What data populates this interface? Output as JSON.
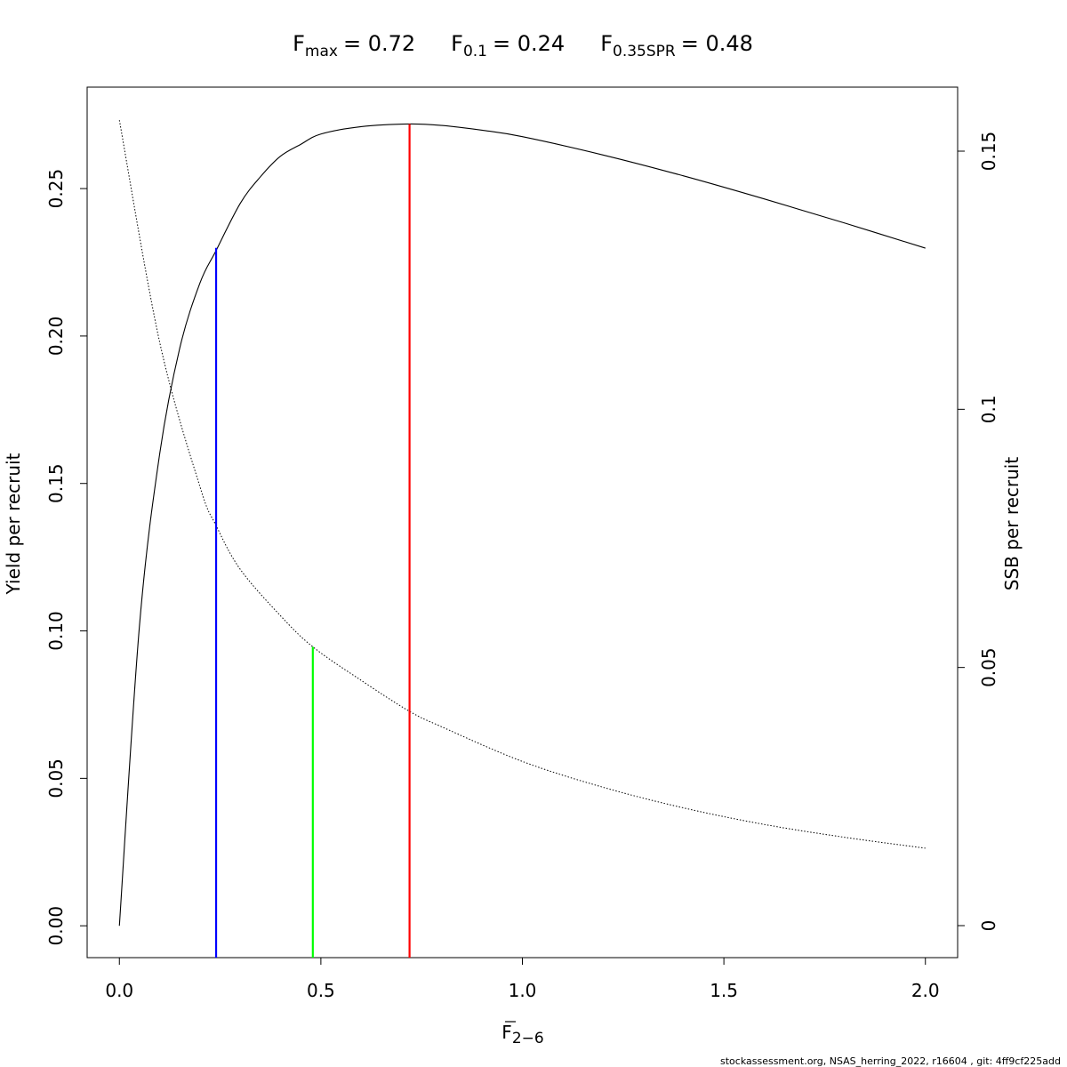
{
  "chart_data": {
    "type": "line",
    "title_parts": [
      {
        "symbol": "F",
        "subscript": "max",
        "equals": "= 0.72"
      },
      {
        "symbol": "F",
        "subscript": "0.1",
        "equals": "= 0.24"
      },
      {
        "symbol": "F",
        "subscript": "0.35SPR",
        "equals": "= 0.48"
      }
    ],
    "xlabel": {
      "symbol": "F",
      "subscript": "2−6"
    },
    "ylabel": "Yield per recruit",
    "ylabel_right": "SSB per recruit",
    "xlim": [
      -0.08,
      2.08
    ],
    "ylim": [
      -0.0108,
      0.2844
    ],
    "ylim_right": [
      -0.0062,
      0.1624
    ],
    "x_ticks": [
      {
        "value": 0.0,
        "label": "0.0"
      },
      {
        "value": 0.5,
        "label": "0.5"
      },
      {
        "value": 1.0,
        "label": "1.0"
      },
      {
        "value": 1.5,
        "label": "1.5"
      },
      {
        "value": 2.0,
        "label": "2.0"
      }
    ],
    "y_ticks": [
      {
        "value": 0.0,
        "label": "0.00"
      },
      {
        "value": 0.05,
        "label": "0.05"
      },
      {
        "value": 0.1,
        "label": "0.10"
      },
      {
        "value": 0.15,
        "label": "0.15"
      },
      {
        "value": 0.2,
        "label": "0.20"
      },
      {
        "value": 0.25,
        "label": "0.25"
      }
    ],
    "y_ticks_right": [
      {
        "value": 0.0,
        "label": "0"
      },
      {
        "value": 0.05,
        "label": "0.05"
      },
      {
        "value": 0.1,
        "label": "0.1"
      },
      {
        "value": 0.15,
        "label": "0.15"
      }
    ],
    "grid": false,
    "series": [
      {
        "style": "solid",
        "axis": "left",
        "color": "#000000",
        "x": [
          0.0,
          0.05,
          0.1,
          0.15,
          0.2,
          0.24,
          0.3,
          0.35,
          0.4,
          0.45,
          0.5,
          0.6,
          0.72,
          0.8,
          0.9,
          1.0,
          1.2,
          1.4,
          1.6,
          1.8,
          2.0
        ],
        "y": [
          0.0,
          0.102,
          0.16,
          0.196,
          0.218,
          0.229,
          0.245,
          0.254,
          0.261,
          0.265,
          0.2685,
          0.271,
          0.2719,
          0.2714,
          0.2698,
          0.2676,
          0.2614,
          0.2543,
          0.2465,
          0.2383,
          0.2298
        ]
      },
      {
        "style": "dotted",
        "axis": "right",
        "color": "#000000",
        "x": [
          0.0,
          0.1,
          0.2,
          0.24,
          0.3,
          0.4,
          0.48,
          0.6,
          0.72,
          0.8,
          1.0,
          1.2,
          1.4,
          1.6,
          1.8,
          2.0
        ],
        "y": [
          0.156,
          0.113,
          0.085,
          0.0775,
          0.069,
          0.06,
          0.054,
          0.0475,
          0.0415,
          0.0385,
          0.0318,
          0.0268,
          0.0228,
          0.0196,
          0.0171,
          0.015
        ]
      }
    ],
    "reference_lines": [
      {
        "x": 0.24,
        "y_top": 0.2299,
        "axis": "left",
        "color": "#0000ff"
      },
      {
        "x": 0.48,
        "y_top": 0.054,
        "axis": "right",
        "color": "#00ff00"
      },
      {
        "x": 0.72,
        "y_top": 0.2719,
        "axis": "left",
        "color": "#ff0000"
      }
    ]
  },
  "footer": "stockassessment.org, NSAS_herring_2022, r16604 , git: 4ff9cf225add"
}
